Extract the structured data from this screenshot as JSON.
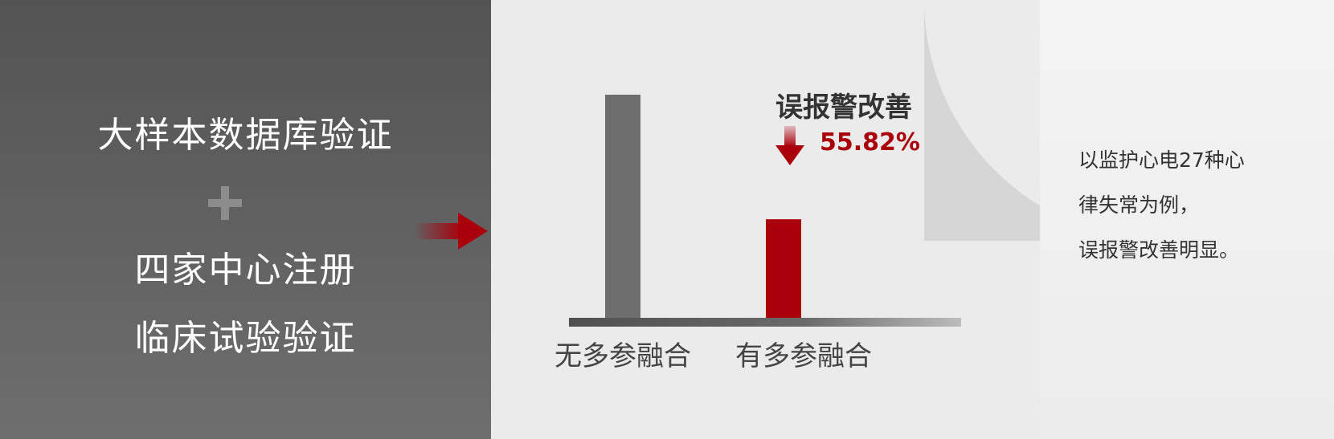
{
  "left_panel": {
    "line1": "大样本数据库验证",
    "plus": "+",
    "line2": "四家中心注册",
    "line3": "临床试验验证"
  },
  "chart_data": {
    "type": "bar",
    "categories": [
      "无多参融合",
      "有多参融合"
    ],
    "values": [
      100,
      44.18
    ],
    "colors": [
      "#6e6e6e",
      "#aa000c"
    ],
    "annotation": {
      "title": "误报警改善",
      "value": "55.82%",
      "icon": "arrow-down-icon"
    },
    "xlabel": "",
    "ylabel": "",
    "grid": false
  },
  "right_panel": {
    "lines": [
      "以监护心电27种心",
      "律失常为例，",
      "误报警改善明显。"
    ]
  },
  "colors": {
    "accent": "#aa000c",
    "dark_panel": "#5a5a5a"
  }
}
